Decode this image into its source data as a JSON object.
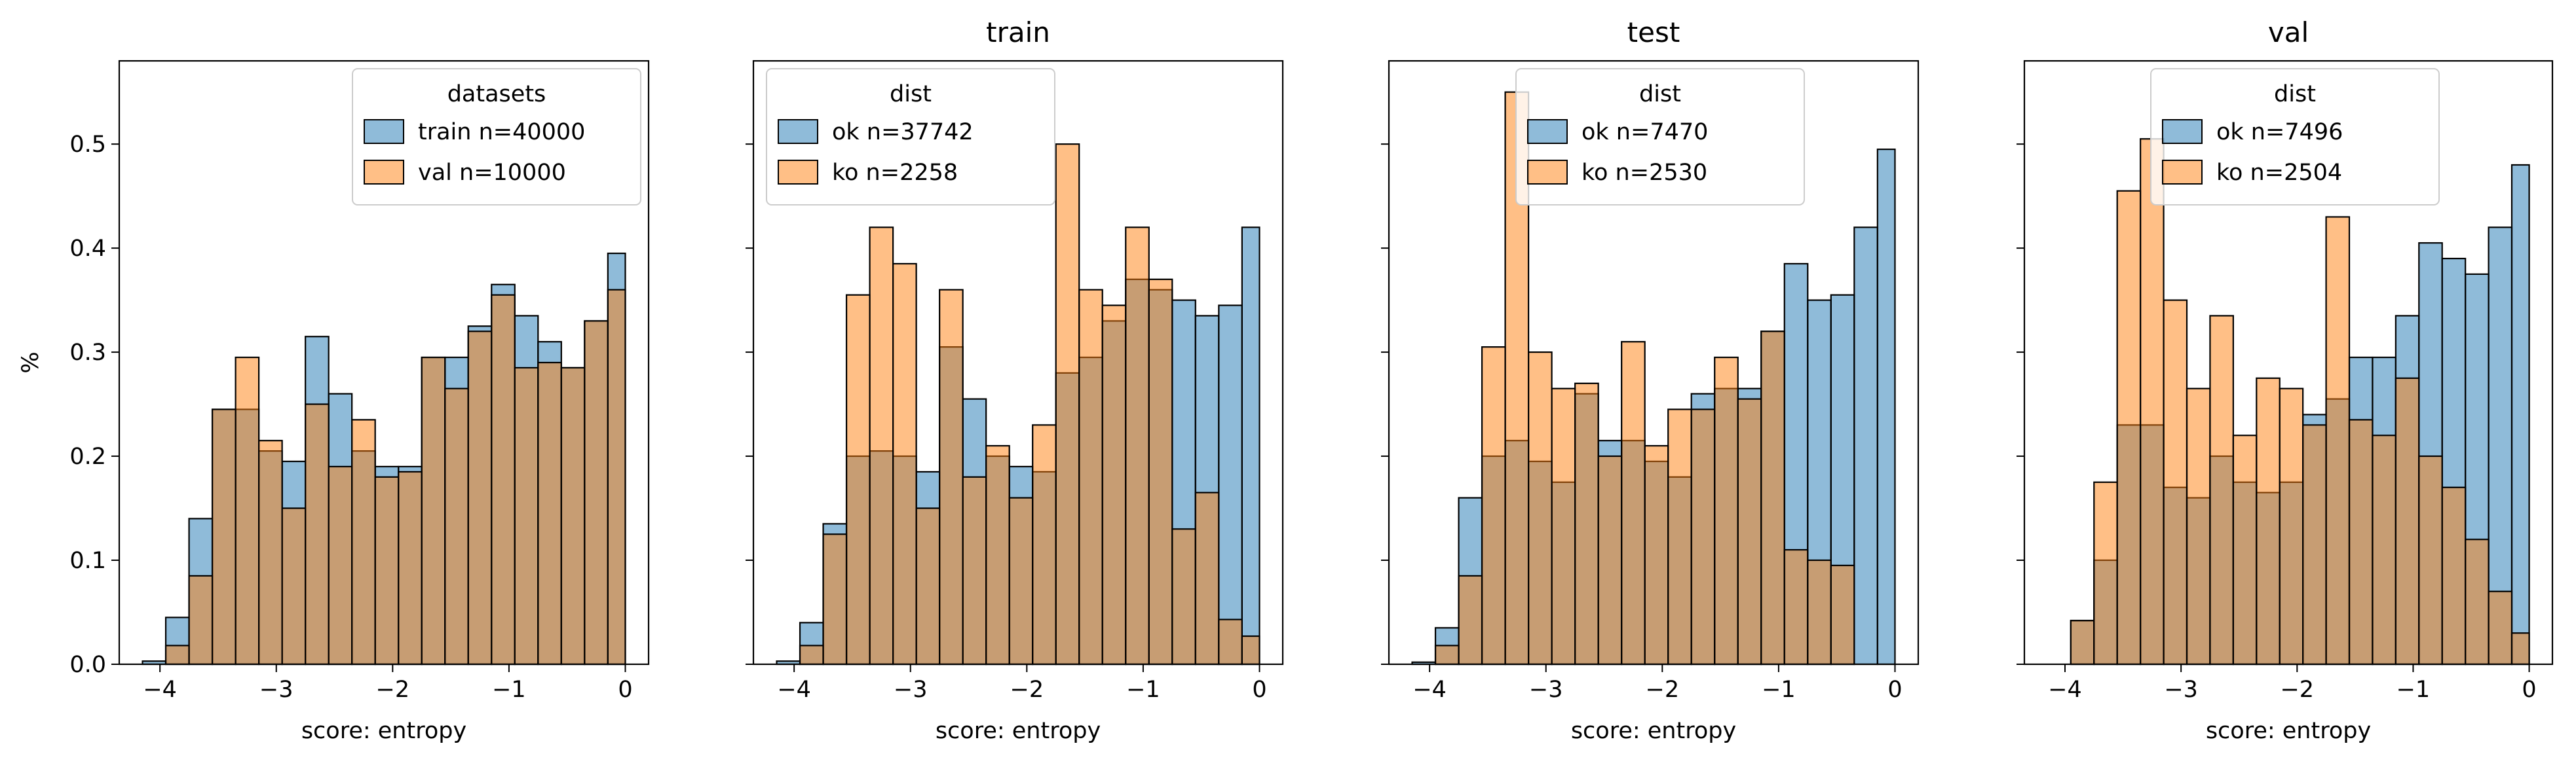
{
  "chart_data": [
    {
      "type": "histogram",
      "title": "",
      "xlabel": "score: entropy",
      "ylabel": "%",
      "xlim": [
        -4.35,
        0.2
      ],
      "ylim": [
        0,
        0.58
      ],
      "xticks": [
        -4,
        -3,
        -2,
        -1,
        0
      ],
      "xtick_labels": [
        "−4",
        "−3",
        "−2",
        "−1",
        "0"
      ],
      "yticks": [
        0.0,
        0.1,
        0.2,
        0.3,
        0.4,
        0.5
      ],
      "ytick_labels": [
        "0.0",
        "0.1",
        "0.2",
        "0.3",
        "0.4",
        "0.5"
      ],
      "bins": [
        -4.15,
        -3.95,
        -3.75,
        -3.55,
        -3.35,
        -3.15,
        -2.95,
        -2.75,
        -2.55,
        -2.35,
        -2.15,
        -1.95,
        -1.75,
        -1.55,
        -1.35,
        -1.15,
        -0.95,
        -0.75,
        -0.55,
        -0.35,
        -0.15,
        0.0
      ],
      "legend": {
        "title": "datasets",
        "position": "upper right"
      },
      "series": [
        {
          "name": "train n=40000",
          "color": "#1f77b4",
          "values": [
            0.003,
            0.045,
            0.14,
            0.245,
            0.245,
            0.205,
            0.195,
            0.315,
            0.26,
            0.205,
            0.19,
            0.19,
            0.295,
            0.295,
            0.325,
            0.365,
            0.335,
            0.31,
            0.285,
            0.33,
            0.395
          ]
        },
        {
          "name": "val n=10000",
          "color": "#ff7f0e",
          "values": [
            0.0,
            0.018,
            0.085,
            0.245,
            0.295,
            0.215,
            0.15,
            0.25,
            0.19,
            0.235,
            0.18,
            0.185,
            0.295,
            0.265,
            0.32,
            0.355,
            0.285,
            0.29,
            0.285,
            0.33,
            0.36
          ]
        }
      ]
    },
    {
      "type": "histogram",
      "title": "train",
      "xlabel": "score: entropy",
      "ylabel": "",
      "xlim": [
        -4.35,
        0.2
      ],
      "ylim": [
        0,
        0.58
      ],
      "xticks": [
        -4,
        -3,
        -2,
        -1,
        0
      ],
      "xtick_labels": [
        "−4",
        "−3",
        "−2",
        "−1",
        "0"
      ],
      "bins": [
        -4.15,
        -3.95,
        -3.75,
        -3.55,
        -3.35,
        -3.15,
        -2.95,
        -2.75,
        -2.55,
        -2.35,
        -2.15,
        -1.95,
        -1.75,
        -1.55,
        -1.35,
        -1.15,
        -0.95,
        -0.75,
        -0.55,
        -0.35,
        -0.15,
        0.0
      ],
      "legend": {
        "title": "dist",
        "position": "upper left"
      },
      "series": [
        {
          "name": "ok n=37742",
          "color": "#1f77b4",
          "values": [
            0.003,
            0.04,
            0.135,
            0.2,
            0.205,
            0.2,
            0.185,
            0.305,
            0.255,
            0.2,
            0.19,
            0.185,
            0.28,
            0.295,
            0.33,
            0.37,
            0.36,
            0.35,
            0.335,
            0.345,
            0.42
          ]
        },
        {
          "name": "ko n=2258",
          "color": "#ff7f0e",
          "values": [
            0.0,
            0.018,
            0.125,
            0.355,
            0.42,
            0.385,
            0.15,
            0.36,
            0.18,
            0.21,
            0.16,
            0.23,
            0.5,
            0.36,
            0.345,
            0.42,
            0.37,
            0.13,
            0.165,
            0.043,
            0.027
          ]
        }
      ]
    },
    {
      "type": "histogram",
      "title": "test",
      "xlabel": "score: entropy",
      "ylabel": "",
      "xlim": [
        -4.35,
        0.2
      ],
      "ylim": [
        0,
        0.58
      ],
      "xticks": [
        -4,
        -3,
        -2,
        -1,
        0
      ],
      "xtick_labels": [
        "−4",
        "−3",
        "−2",
        "−1",
        "0"
      ],
      "bins": [
        -4.15,
        -3.95,
        -3.75,
        -3.55,
        -3.35,
        -3.15,
        -2.95,
        -2.75,
        -2.55,
        -2.35,
        -2.15,
        -1.95,
        -1.75,
        -1.55,
        -1.35,
        -1.15,
        -0.95,
        -0.75,
        -0.55,
        -0.35,
        -0.15,
        0.0
      ],
      "legend": {
        "title": "dist",
        "position": "upper center"
      },
      "series": [
        {
          "name": "ok n=7470",
          "color": "#1f77b4",
          "values": [
            0.002,
            0.035,
            0.16,
            0.2,
            0.215,
            0.195,
            0.175,
            0.26,
            0.215,
            0.215,
            0.195,
            0.18,
            0.26,
            0.265,
            0.265,
            0.32,
            0.385,
            0.35,
            0.355,
            0.42,
            0.495
          ]
        },
        {
          "name": "ko n=2530",
          "color": "#ff7f0e",
          "values": [
            0.0,
            0.018,
            0.085,
            0.305,
            0.55,
            0.3,
            0.265,
            0.27,
            0.2,
            0.31,
            0.21,
            0.245,
            0.245,
            0.295,
            0.255,
            0.32,
            0.11,
            0.1,
            0.095,
            0.0,
            0.0
          ]
        }
      ]
    },
    {
      "type": "histogram",
      "title": "val",
      "xlabel": "score: entropy",
      "ylabel": "",
      "xlim": [
        -4.35,
        0.2
      ],
      "ylim": [
        0,
        0.58
      ],
      "xticks": [
        -4,
        -3,
        -2,
        -1,
        0
      ],
      "xtick_labels": [
        "−4",
        "−3",
        "−2",
        "−1",
        "0"
      ],
      "bins": [
        -4.15,
        -3.95,
        -3.75,
        -3.55,
        -3.35,
        -3.15,
        -2.95,
        -2.75,
        -2.55,
        -2.35,
        -2.15,
        -1.95,
        -1.75,
        -1.55,
        -1.35,
        -1.15,
        -0.95,
        -0.75,
        -0.55,
        -0.35,
        -0.15,
        0.0
      ],
      "legend": {
        "title": "dist",
        "position": "upper center"
      },
      "series": [
        {
          "name": "ok n=7496",
          "color": "#1f77b4",
          "values": [
            0.0,
            0.042,
            0.1,
            0.23,
            0.23,
            0.17,
            0.16,
            0.2,
            0.175,
            0.165,
            0.175,
            0.24,
            0.255,
            0.295,
            0.295,
            0.335,
            0.405,
            0.39,
            0.375,
            0.42,
            0.48
          ]
        },
        {
          "name": "ko n=2504",
          "color": "#ff7f0e",
          "values": [
            0.0,
            0.042,
            0.175,
            0.455,
            0.505,
            0.35,
            0.265,
            0.335,
            0.22,
            0.275,
            0.265,
            0.23,
            0.43,
            0.235,
            0.22,
            0.275,
            0.2,
            0.17,
            0.12,
            0.07,
            0.03
          ]
        }
      ]
    }
  ]
}
